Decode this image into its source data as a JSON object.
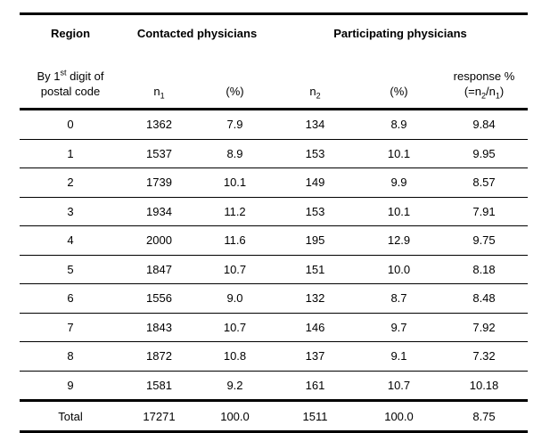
{
  "page": {
    "background": "#ffffff",
    "text_color": "#000000",
    "rule_color": "#000000"
  },
  "table": {
    "header": {
      "region": "Region",
      "contacted": "Contacted physicians",
      "participating": "Participating physicians"
    },
    "subheader": {
      "region_line1_pre": "By 1",
      "region_sup": "st",
      "region_line1_post": " digit of",
      "region_line2": "postal code",
      "n_label": "n",
      "n1_sub": "1",
      "n2_sub": "2",
      "pct1": "(%)",
      "pct2": "(%)",
      "response_line1": "response %",
      "response_open": "(=n",
      "response_sub2": "2",
      "response_slash": "/n",
      "response_sub1": "1",
      "response_close": ")"
    },
    "rows": [
      {
        "region": "0",
        "n1": "1362",
        "n1_pct": "7.9",
        "n2": "134",
        "n2_pct": "8.9",
        "response_pct": "9.84"
      },
      {
        "region": "1",
        "n1": "1537",
        "n1_pct": "8.9",
        "n2": "153",
        "n2_pct": "10.1",
        "response_pct": "9.95"
      },
      {
        "region": "2",
        "n1": "1739",
        "n1_pct": "10.1",
        "n2": "149",
        "n2_pct": "9.9",
        "response_pct": "8.57"
      },
      {
        "region": "3",
        "n1": "1934",
        "n1_pct": "11.2",
        "n2": "153",
        "n2_pct": "10.1",
        "response_pct": "7.91"
      },
      {
        "region": "4",
        "n1": "2000",
        "n1_pct": "11.6",
        "n2": "195",
        "n2_pct": "12.9",
        "response_pct": "9.75"
      },
      {
        "region": "5",
        "n1": "1847",
        "n1_pct": "10.7",
        "n2": "151",
        "n2_pct": "10.0",
        "response_pct": "8.18"
      },
      {
        "region": "6",
        "n1": "1556",
        "n1_pct": "9.0",
        "n2": "132",
        "n2_pct": "8.7",
        "response_pct": "8.48"
      },
      {
        "region": "7",
        "n1": "1843",
        "n1_pct": "10.7",
        "n2": "146",
        "n2_pct": "9.7",
        "response_pct": "7.92"
      },
      {
        "region": "8",
        "n1": "1872",
        "n1_pct": "10.8",
        "n2": "137",
        "n2_pct": "9.1",
        "response_pct": "7.32"
      },
      {
        "region": "9",
        "n1": "1581",
        "n1_pct": "9.2",
        "n2": "161",
        "n2_pct": "10.7",
        "response_pct": "10.18"
      }
    ],
    "total_row": {
      "region": "Total",
      "n1": "17271",
      "n1_pct": "100.0",
      "n2": "1511",
      "n2_pct": "100.0",
      "response_pct": "8.75"
    }
  }
}
